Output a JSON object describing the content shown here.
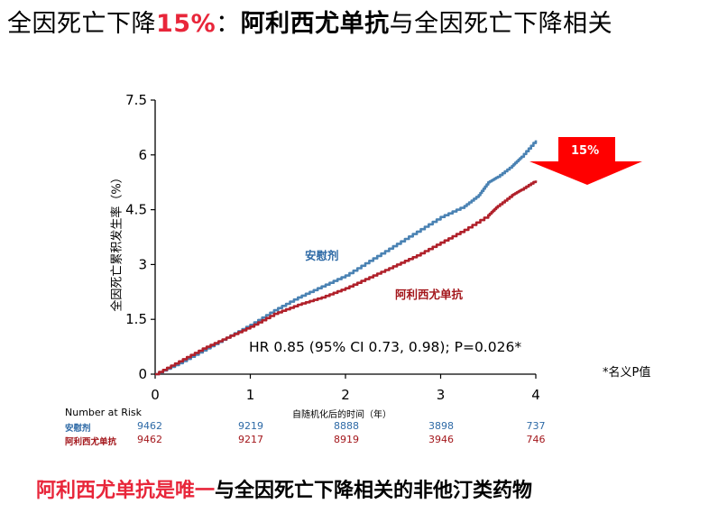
{
  "title": {
    "part1": "全因死亡下降",
    "part2": "15%",
    "part3": "：",
    "part4": "阿利西尤单抗",
    "part5": "与全因死亡下降相关"
  },
  "bottom_text": {
    "part1": "阿利西尤单抗是唯一",
    "part2": "与全因死亡下降相关的非他汀类药物"
  },
  "footnote": "*名义P值",
  "arrow_label": "15%",
  "colors": {
    "placebo": "#4a82b3",
    "alirocumab": "#b0202a",
    "accent": "#e8263a",
    "arrow": "#ff0000"
  },
  "chart_data": {
    "type": "line",
    "title": "",
    "xlabel": "自随机化后的时间（年）",
    "ylabel": "全因死亡累积发生率（%）",
    "xlim": [
      0,
      4
    ],
    "ylim": [
      0,
      7.5
    ],
    "x_ticks": [
      "0",
      "1",
      "2",
      "3",
      "4"
    ],
    "y_ticks": [
      "0",
      "1.5",
      "3",
      "4.5",
      "6",
      "7.5"
    ],
    "annotation": "HR 0.85 (95% CI 0.73, 0.98); P=0.026*",
    "series": [
      {
        "name": "安慰剂",
        "color": "#4a82b3",
        "x": [
          0,
          0.25,
          0.5,
          0.75,
          1.0,
          1.25,
          1.5,
          1.75,
          2.0,
          2.25,
          2.5,
          2.75,
          3.0,
          3.25,
          3.4,
          3.5,
          3.6,
          3.75,
          3.85,
          4.0
        ],
        "y": [
          0,
          0.3,
          0.65,
          1.0,
          1.35,
          1.75,
          2.1,
          2.4,
          2.7,
          3.1,
          3.5,
          3.9,
          4.3,
          4.6,
          4.9,
          5.25,
          5.4,
          5.7,
          5.95,
          6.4
        ]
      },
      {
        "name": "阿利西尤单抗",
        "color": "#b0202a",
        "x": [
          0,
          0.25,
          0.5,
          0.75,
          1.0,
          1.25,
          1.5,
          1.75,
          2.0,
          2.25,
          2.5,
          2.75,
          3.0,
          3.25,
          3.5,
          3.6,
          3.75,
          3.85,
          4.0
        ],
        "y": [
          0,
          0.35,
          0.7,
          1.0,
          1.3,
          1.65,
          1.9,
          2.1,
          2.35,
          2.65,
          2.95,
          3.25,
          3.6,
          3.95,
          4.35,
          4.6,
          4.9,
          5.05,
          5.3
        ]
      }
    ],
    "risk_table": {
      "title": "Number at Risk",
      "rows": [
        {
          "name": "安慰剂",
          "values": [
            "9462",
            "9219",
            "8888",
            "3898",
            "737"
          ]
        },
        {
          "name": "阿利西尤单抗",
          "values": [
            "9462",
            "9217",
            "8919",
            "3946",
            "746"
          ]
        }
      ]
    }
  }
}
